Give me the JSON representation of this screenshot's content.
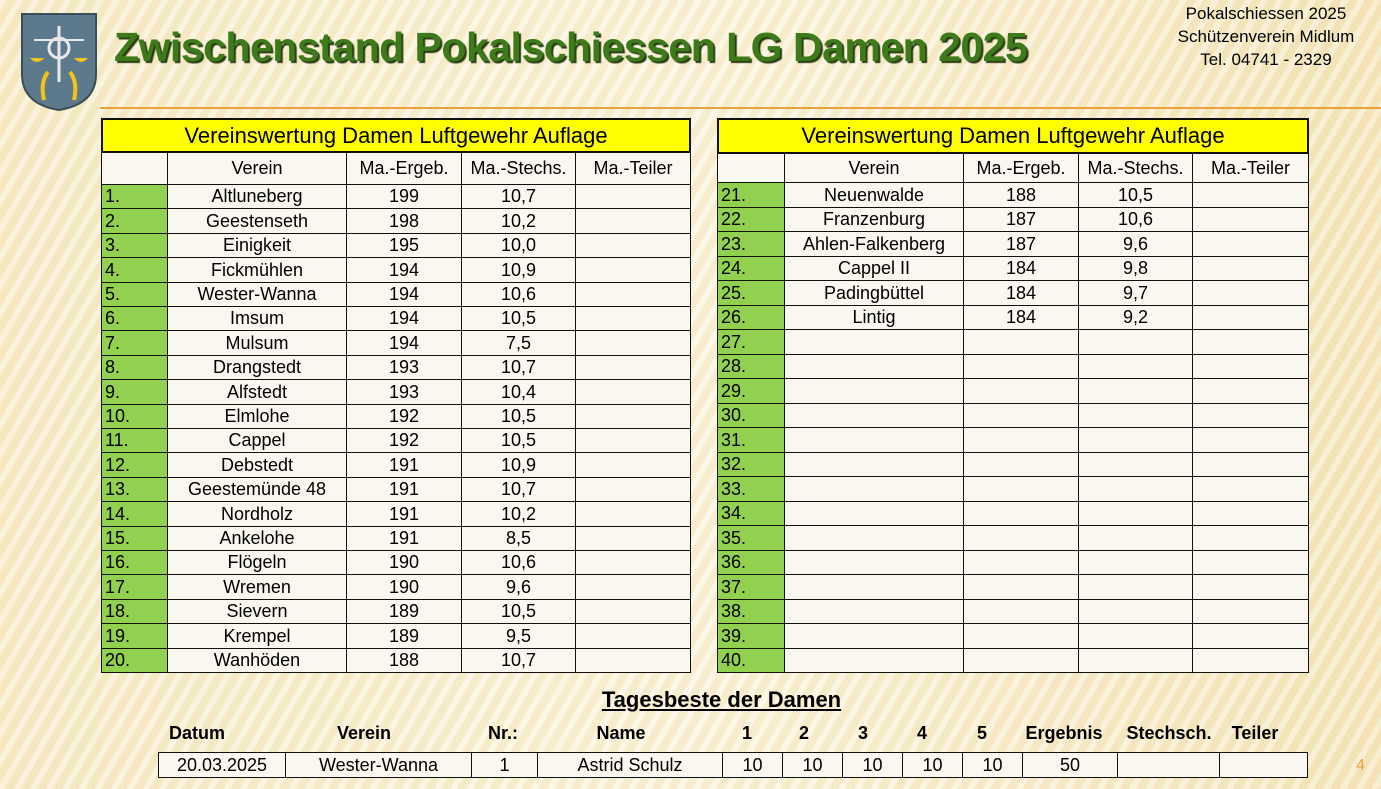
{
  "header": {
    "title": "Zwischenstand Pokalschiessen LG Damen 2025",
    "info": [
      "Pokalschiessen 2025",
      "Schützenverein Midlum",
      "Tel. 04741 - 2329"
    ]
  },
  "tables": [
    {
      "title": "Vereinswertung Damen Luftgewehr Auflage",
      "columns": [
        "Verein",
        "Ma.-Ergeb.",
        "Ma.-Stechs.",
        "Ma.-Teiler"
      ],
      "rows": [
        {
          "rank": "1.",
          "verein": "Altluneberg",
          "ergebnis": 199,
          "stechs": "10,7"
        },
        {
          "rank": "2.",
          "verein": "Geestenseth",
          "ergebnis": 198,
          "stechs": "10,2"
        },
        {
          "rank": "3.",
          "verein": "Einigkeit",
          "ergebnis": 195,
          "stechs": "10,0"
        },
        {
          "rank": "4.",
          "verein": "Fickmühlen",
          "ergebnis": 194,
          "stechs": "10,9"
        },
        {
          "rank": "5.",
          "verein": "Wester-Wanna",
          "ergebnis": 194,
          "stechs": "10,6"
        },
        {
          "rank": "6.",
          "verein": "Imsum",
          "ergebnis": 194,
          "stechs": "10,5"
        },
        {
          "rank": "7.",
          "verein": "Mulsum",
          "ergebnis": 194,
          "stechs": "7,5"
        },
        {
          "rank": "8.",
          "verein": "Drangstedt",
          "ergebnis": 193,
          "stechs": "10,7"
        },
        {
          "rank": "9.",
          "verein": "Alfstedt",
          "ergebnis": 193,
          "stechs": "10,4"
        },
        {
          "rank": "10.",
          "verein": "Elmlohe",
          "ergebnis": 192,
          "stechs": "10,5"
        },
        {
          "rank": "11.",
          "verein": "Cappel",
          "ergebnis": 192,
          "stechs": "10,5"
        },
        {
          "rank": "12.",
          "verein": "Debstedt",
          "ergebnis": 191,
          "stechs": "10,9"
        },
        {
          "rank": "13.",
          "verein": "Geestemünde 48",
          "ergebnis": 191,
          "stechs": "10,7"
        },
        {
          "rank": "14.",
          "verein": "Nordholz",
          "ergebnis": 191,
          "stechs": "10,2"
        },
        {
          "rank": "15.",
          "verein": "Ankelohe",
          "ergebnis": 191,
          "stechs": "8,5"
        },
        {
          "rank": "16.",
          "verein": "Flögeln",
          "ergebnis": 190,
          "stechs": "10,6"
        },
        {
          "rank": "17.",
          "verein": "Wremen",
          "ergebnis": 190,
          "stechs": "9,6"
        },
        {
          "rank": "18.",
          "verein": "Sievern",
          "ergebnis": 189,
          "stechs": "10,5"
        },
        {
          "rank": "19.",
          "verein": "Krempel",
          "ergebnis": 189,
          "stechs": "9,5"
        },
        {
          "rank": "20.",
          "verein": "Wanhöden",
          "ergebnis": 188,
          "stechs": "10,7"
        }
      ]
    },
    {
      "title": "Vereinswertung Damen Luftgewehr Auflage",
      "columns": [
        "Verein",
        "Ma.-Ergeb.",
        "Ma.-Stechs.",
        "Ma.-Teiler"
      ],
      "rows": [
        {
          "rank": "21.",
          "verein": "Neuenwalde",
          "ergebnis": 188,
          "stechs": "10,5"
        },
        {
          "rank": "22.",
          "verein": "Franzenburg",
          "ergebnis": 187,
          "stechs": "10,6"
        },
        {
          "rank": "23.",
          "verein": "Ahlen-Falkenberg",
          "ergebnis": 187,
          "stechs": "9,6"
        },
        {
          "rank": "24.",
          "verein": "Cappel II",
          "ergebnis": 184,
          "stechs": "9,8"
        },
        {
          "rank": "25.",
          "verein": "Padingbüttel",
          "ergebnis": 184,
          "stechs": "9,7"
        },
        {
          "rank": "26.",
          "verein": "Lintig",
          "ergebnis": 184,
          "stechs": "9,2"
        },
        {
          "rank": "27."
        },
        {
          "rank": "28."
        },
        {
          "rank": "29."
        },
        {
          "rank": "30."
        },
        {
          "rank": "31."
        },
        {
          "rank": "32."
        },
        {
          "rank": "33."
        },
        {
          "rank": "34."
        },
        {
          "rank": "35."
        },
        {
          "rank": "36."
        },
        {
          "rank": "37."
        },
        {
          "rank": "38."
        },
        {
          "rank": "39."
        },
        {
          "rank": "40."
        }
      ]
    }
  ],
  "tagesbeste": {
    "title": "Tagesbeste der Damen",
    "columns": [
      "Datum",
      "Verein",
      "Nr.:",
      "Name",
      "1",
      "2",
      "3",
      "4",
      "5",
      "Ergebnis",
      "Stechsch.",
      "Teiler"
    ],
    "row": [
      "20.03.2025",
      "Wester-Wanna",
      1,
      "Astrid Schulz",
      10,
      10,
      10,
      10,
      10,
      50
    ]
  },
  "page_number": 4
}
